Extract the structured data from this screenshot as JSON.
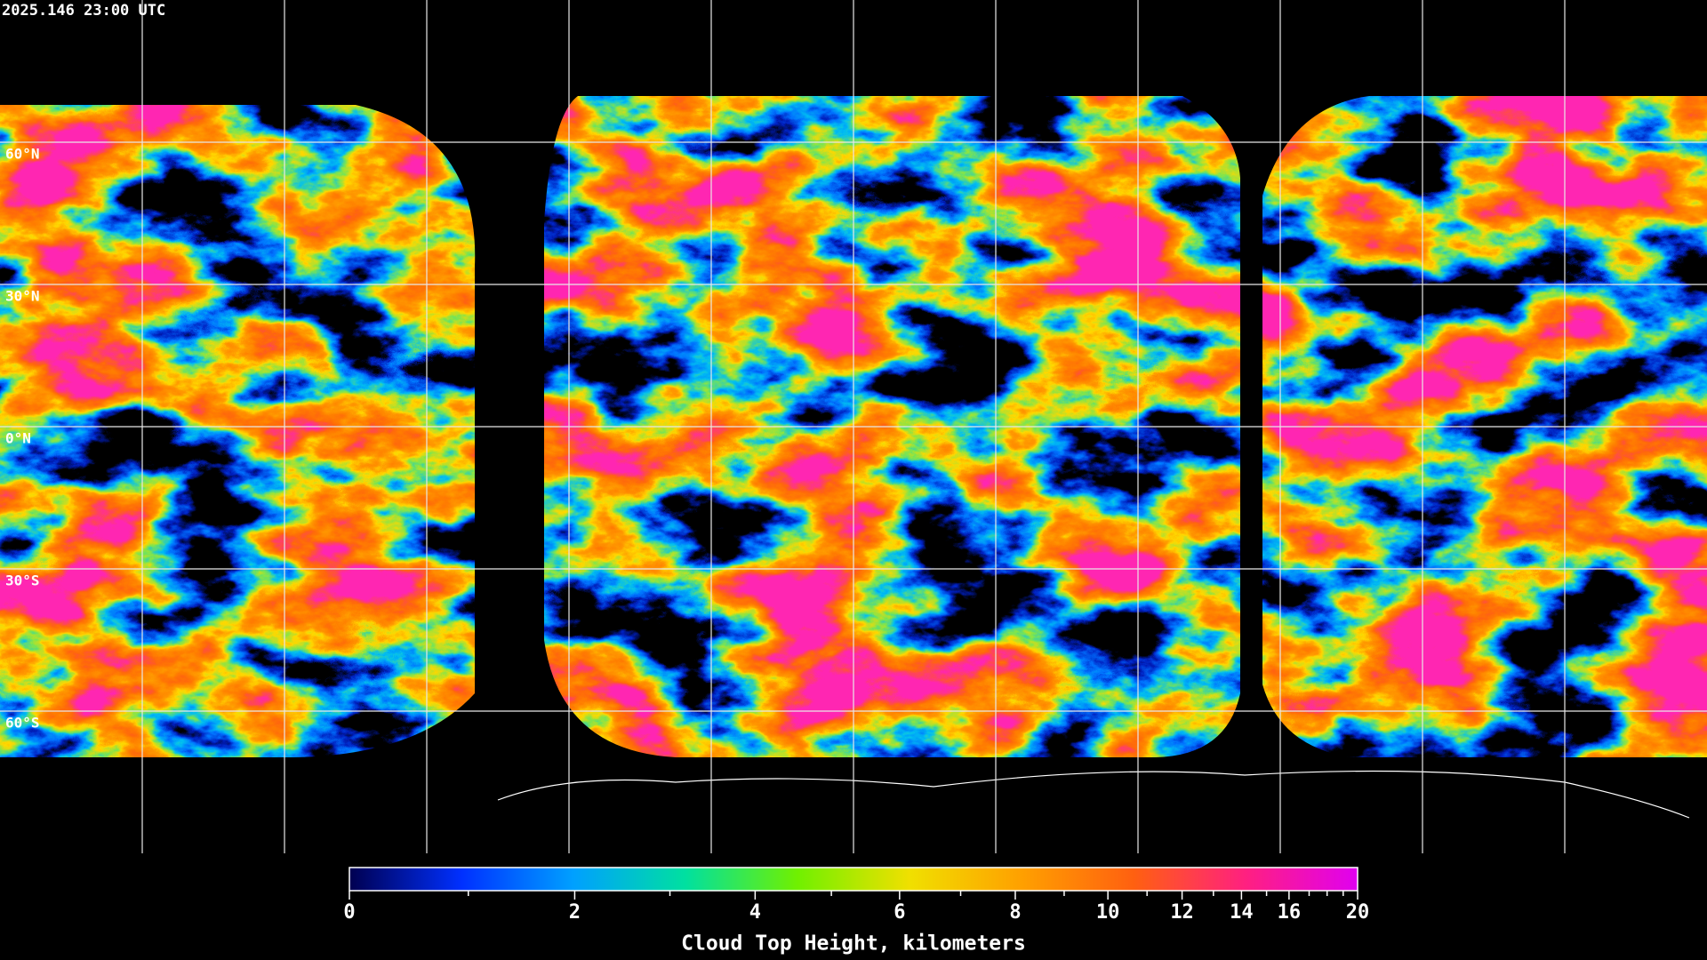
{
  "timestamp": "2025.146 23:00 UTC",
  "map": {
    "graticule": {
      "latitudes": [
        {
          "value": 60,
          "label": "60°N"
        },
        {
          "value": 30,
          "label": "30°N"
        },
        {
          "value": 0,
          "label": "0°N"
        },
        {
          "value": -30,
          "label": "30°S"
        },
        {
          "value": -60,
          "label": "60°S"
        }
      ],
      "longitudes": [
        -150,
        -120,
        -90,
        -60,
        -30,
        0,
        30,
        60,
        90,
        120,
        150
      ],
      "color": "#e8e8e8"
    }
  },
  "colorbar": {
    "title": "Cloud Top Height, kilometers",
    "range": [
      0,
      20
    ],
    "ticks": [
      0,
      2,
      4,
      6,
      8,
      10,
      12,
      14,
      16,
      20
    ],
    "minor_ticks": [
      1,
      3,
      5,
      7,
      9,
      11,
      13,
      15,
      17,
      18,
      19
    ],
    "colors": [
      "#000050",
      "#0030ff",
      "#00a0ff",
      "#00e0a0",
      "#70f000",
      "#f0e000",
      "#ffa000",
      "#ff6010",
      "#ff2080",
      "#e000f0"
    ]
  }
}
